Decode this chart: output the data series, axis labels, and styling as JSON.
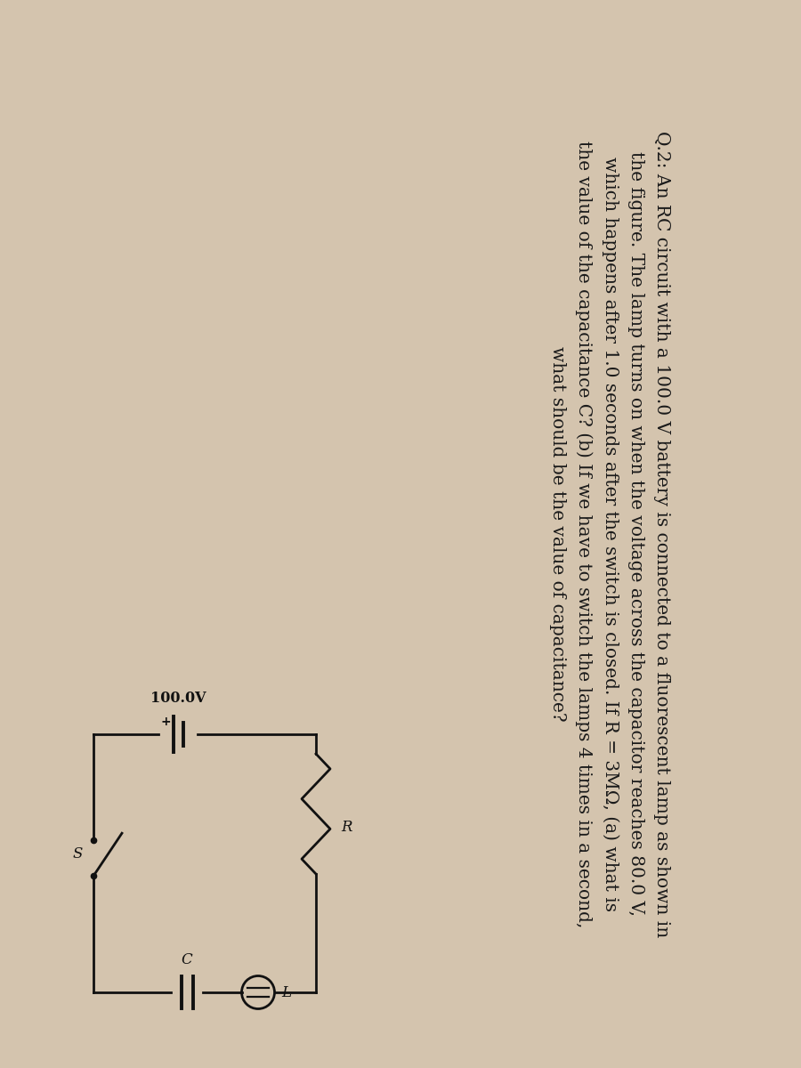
{
  "background_color": "#d4c4ae",
  "title_text": "Q.2: An RC circuit with a 100.0 V battery is connected to a fluorescent lamp as shown in\nthe figure. The lamp turns on when the voltage across the capacitor reaches 80.0 V,\nwhich happens after 1.0 seconds after the switch is closed. If R = 3MΩ, (a) what is\nthe value of the capacitance C? (b) If we have to switch the lamps 4 times in a second,\nwhat should be the value of capacitance?",
  "battery_label": "100.0V",
  "resistor_label": "R",
  "capacitor_label": "C",
  "lamp_label": "L",
  "switch_label": "S",
  "text_color": "#1a1a1a",
  "line_color": "#111111",
  "font_size_text": 14.5,
  "font_size_labels": 12,
  "font_size_battery": 11.5
}
